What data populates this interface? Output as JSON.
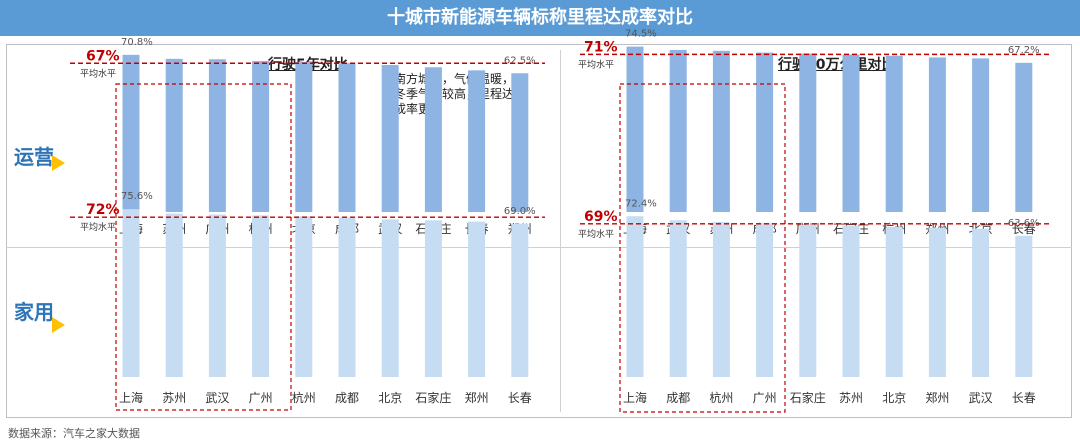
{
  "title": "十城市新能源车辆标称里程达成率对比",
  "source": "数据来源：汽车之家大数据",
  "row_labels": {
    "commercial": "运营",
    "private": "家用"
  },
  "panel_titles": {
    "five_year": "行驶5年对比",
    "two_hundred_k": "行驶20万公里对比"
  },
  "annotation": [
    "南方城市，气候温暖，",
    "冬季气温较高，里程达",
    "成率更高"
  ],
  "avg_label": "平均水平",
  "colors": {
    "commercial_bar": "#8eb4e3",
    "private_bar": "#c5dcf2",
    "avg_line": "#c00000",
    "avg_text": "#c00000",
    "highlight_box": "#c00000"
  },
  "chart_data": [
    {
      "type": "bar",
      "panel": "行驶5年对比",
      "row": "运营",
      "categories": [
        "上海",
        "苏州",
        "广州",
        "杭州",
        "北京",
        "成都",
        "武汉",
        "石家庄",
        "长春",
        "郑州"
      ],
      "values": [
        70.8,
        69.0,
        68.8,
        68.0,
        67.6,
        67.0,
        66.2,
        65.2,
        63.8,
        62.5
      ],
      "average": 67,
      "average_label": "67%",
      "data_labels": {
        "0": "70.8%",
        "9": "62.5%"
      },
      "highlight_count": 4,
      "ylim": [
        0,
        80
      ]
    },
    {
      "type": "bar",
      "panel": "行驶20万公里对比",
      "row": "运营",
      "categories": [
        "上海",
        "武汉",
        "苏州",
        "成都",
        "广州",
        "石家庄",
        "杭州",
        "郑州",
        "北京",
        "长春"
      ],
      "values": [
        74.5,
        73.0,
        72.6,
        71.8,
        71.4,
        70.9,
        70.4,
        69.6,
        69.2,
        67.2
      ],
      "average": 71,
      "average_label": "71%",
      "data_labels": {
        "0": "74.5%",
        "9": "67.2%"
      },
      "highlight_count": 4,
      "ylim": [
        0,
        80
      ]
    },
    {
      "type": "bar",
      "panel": "行驶5年对比",
      "row": "家用",
      "categories": [
        "上海",
        "苏州",
        "武汉",
        "广州",
        "杭州",
        "成都",
        "北京",
        "石家庄",
        "郑州",
        "长春"
      ],
      "values": [
        75.6,
        73.6,
        73.2,
        72.8,
        72.4,
        71.8,
        71.0,
        70.6,
        70.0,
        69.0
      ],
      "average": 72,
      "average_label": "72%",
      "data_labels": {
        "0": "75.6%",
        "9": "69.0%"
      },
      "highlight_count": 4,
      "ylim": [
        0,
        80
      ]
    },
    {
      "type": "bar",
      "panel": "行驶20万公里对比",
      "row": "家用",
      "categories": [
        "上海",
        "成都",
        "杭州",
        "广州",
        "石家庄",
        "苏州",
        "北京",
        "郑州",
        "武汉",
        "长春"
      ],
      "values": [
        72.4,
        70.6,
        69.8,
        69.4,
        68.6,
        68.2,
        67.6,
        67.2,
        66.8,
        63.6
      ],
      "average": 69,
      "average_label": "69%",
      "data_labels": {
        "0": "72.4%",
        "9": "63.6%"
      },
      "highlight_count": 4,
      "ylim": [
        0,
        80
      ]
    }
  ]
}
